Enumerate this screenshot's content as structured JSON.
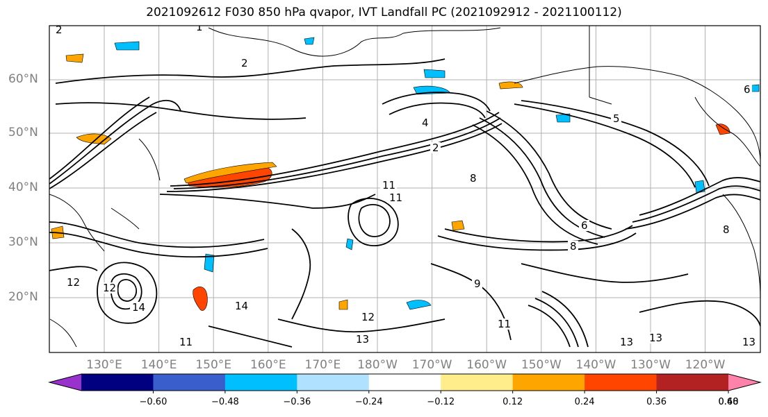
{
  "title": "2021092612 F030 850 hPa qvapor, IVT Landfall PC (2021092912 - 2021100112)",
  "map": {
    "lat_labels": [
      "60°N",
      "50°N",
      "40°N",
      "30°N",
      "20°N"
    ],
    "lon_labels": [
      "130°E",
      "140°E",
      "150°E",
      "160°E",
      "170°E",
      "180°W",
      "170°W",
      "160°W",
      "150°W",
      "140°W",
      "130°W",
      "120°W"
    ],
    "contour_labels": [
      {
        "text": "2"
      },
      {
        "text": "1"
      },
      {
        "text": "2"
      },
      {
        "text": "6"
      },
      {
        "text": "5"
      },
      {
        "text": "4"
      },
      {
        "text": "2"
      },
      {
        "text": "8"
      },
      {
        "text": "11"
      },
      {
        "text": "12"
      },
      {
        "text": "14"
      },
      {
        "text": "14"
      },
      {
        "text": "11"
      },
      {
        "text": "13"
      },
      {
        "text": "13"
      },
      {
        "text": "12"
      },
      {
        "text": "11"
      },
      {
        "text": "9"
      },
      {
        "text": "8"
      },
      {
        "text": "13"
      },
      {
        "text": "13"
      },
      {
        "text": "8"
      },
      {
        "text": "12"
      },
      {
        "text": "11"
      },
      {
        "text": "6"
      }
    ]
  },
  "colorbar": {
    "colors": [
      "#9932cc",
      "#000080",
      "#3a5fcd",
      "#00bfff",
      "#b0e2ff",
      "#ffffff",
      "#ffec8b",
      "#ffa500",
      "#ff4500",
      "#b22222",
      "#ff82ab"
    ],
    "tick_labels": [
      "−0.60",
      "−0.48",
      "−0.36",
      "−0.24",
      "−0.12",
      "0.12",
      "0.24",
      "0.36",
      "0.48",
      "0.60"
    ]
  }
}
